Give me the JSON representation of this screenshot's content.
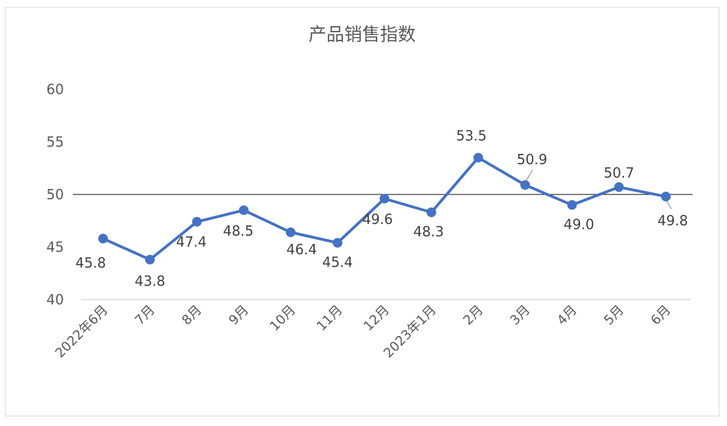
{
  "chart_data": {
    "type": "line",
    "title": "产品销售指数",
    "categories": [
      "2022年6月",
      "7月",
      "8月",
      "9月",
      "10月",
      "11月",
      "12月",
      "2023年1月",
      "2月",
      "3月",
      "4月",
      "5月",
      "6月"
    ],
    "series": [
      {
        "values": [
          45.8,
          43.8,
          47.4,
          48.5,
          46.4,
          45.4,
          49.6,
          48.3,
          53.5,
          50.9,
          49.0,
          50.7,
          49.8
        ]
      }
    ],
    "data_labels": [
      "45.8",
      "43.8",
      "47.4",
      "48.5",
      "46.4",
      "45.4",
      "49.6",
      "48.3",
      "53.5",
      "50.9",
      "49.0",
      "50.7",
      "49.8"
    ],
    "y_ticks": [
      "40",
      "45",
      "50",
      "55",
      "60"
    ],
    "ylim": [
      40,
      60
    ],
    "reference_line": 50,
    "grid": false,
    "legend": "none",
    "colors": {
      "line": "#4472c4",
      "reference": "#000000",
      "axis": "#d9d9d9",
      "text": "#595959"
    }
  }
}
